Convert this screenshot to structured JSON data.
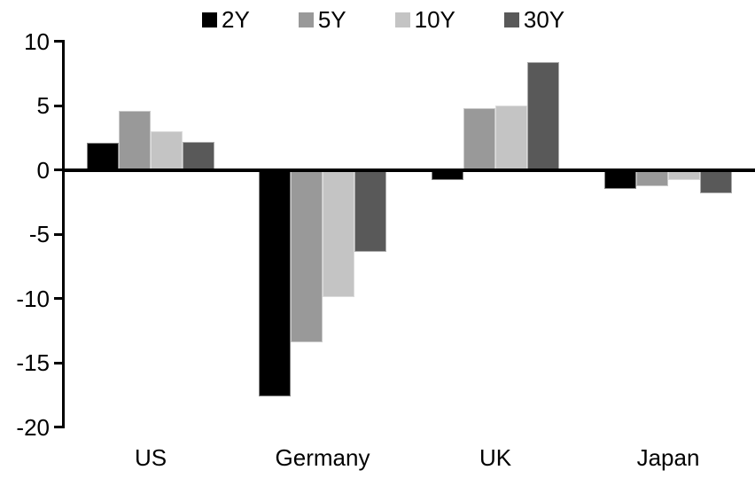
{
  "chart_data": {
    "type": "bar",
    "title": "",
    "xlabel": "",
    "ylabel": "",
    "categories": [
      "US",
      "Germany",
      "UK",
      "Japan"
    ],
    "series": [
      {
        "name": "2Y",
        "color": "#000000",
        "values": [
          2.1,
          -17.6,
          -0.8,
          -1.5
        ]
      },
      {
        "name": "5Y",
        "color": "#999999",
        "values": [
          4.6,
          -13.4,
          4.8,
          -1.3
        ]
      },
      {
        "name": "10Y",
        "color": "#c4c4c4",
        "values": [
          3.0,
          -9.9,
          5.0,
          -0.8
        ]
      },
      {
        "name": "30Y",
        "color": "#595959",
        "values": [
          2.2,
          -6.4,
          8.4,
          -1.8
        ]
      }
    ],
    "ylim": [
      -20,
      10
    ],
    "yticks": [
      10,
      5,
      0,
      -5,
      -10,
      -15,
      -20
    ],
    "grid": false,
    "legend_position": "top",
    "axis_color": "#000000",
    "background_color": "#ffffff"
  }
}
